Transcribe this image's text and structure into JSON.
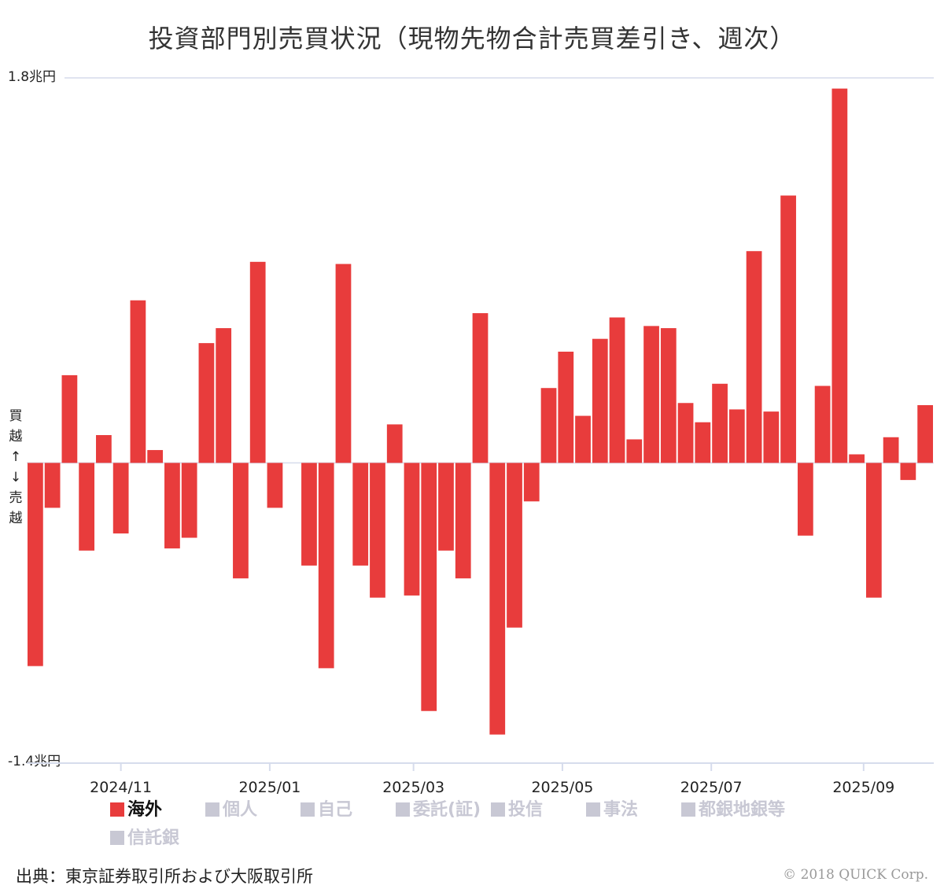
{
  "chart_data": {
    "type": "bar",
    "title": "投資部門別売買状況（現物先物合計売買差引き、週次）",
    "y_top_label": "1.8兆円",
    "y_bottom_label": "-1.4兆円",
    "ylim": [
      -1.4,
      1.8
    ],
    "ylabel_upper": [
      "買",
      "越",
      "↑"
    ],
    "ylabel_lower": [
      "↓",
      "売",
      "越"
    ],
    "x_ticks": [
      {
        "label": "2024/11",
        "index": 5.5
      },
      {
        "label": "2025/01",
        "index": 14.2
      },
      {
        "label": "2025/03",
        "index": 22.6
      },
      {
        "label": "2025/05",
        "index": 31.3
      },
      {
        "label": "2025/07",
        "index": 40.0
      },
      {
        "label": "2025/09",
        "index": 48.9
      }
    ],
    "series": [
      {
        "name": "海外",
        "color": "#e83c3c",
        "values": [
          -0.95,
          -0.21,
          0.41,
          -0.41,
          0.13,
          -0.33,
          0.76,
          0.06,
          -0.4,
          -0.35,
          0.56,
          0.63,
          -0.54,
          0.94,
          -0.21,
          0,
          -0.48,
          -0.96,
          0.93,
          -0.48,
          -0.63,
          0.18,
          -0.62,
          -1.16,
          -0.41,
          -0.54,
          0.7,
          -1.27,
          -0.77,
          -0.18,
          0.35,
          0.52,
          0.22,
          0.58,
          0.68,
          0.11,
          0.64,
          0.63,
          0.28,
          0.19,
          0.37,
          0.25,
          0.99,
          0.24,
          1.25,
          -0.34,
          0.36,
          1.75,
          0.04,
          -0.63,
          0.12,
          -0.08,
          0.27
        ]
      }
    ],
    "legend": [
      {
        "name": "海外",
        "active": true
      },
      {
        "name": "個人",
        "active": false
      },
      {
        "name": "自己",
        "active": false
      },
      {
        "name": "委託(証)",
        "active": false
      },
      {
        "name": "投信",
        "active": false
      },
      {
        "name": "事法",
        "active": false
      },
      {
        "name": "都銀地銀等",
        "active": false
      },
      {
        "name": "信託銀",
        "active": false
      }
    ],
    "colors": {
      "active": "#e83c3c",
      "inactive": "#c8c8d4",
      "grid": "#d6dcec"
    }
  },
  "footer": {
    "source": "出典：東京証券取引所および大阪取引所",
    "copyright": "© 2018 QUICK Corp."
  }
}
